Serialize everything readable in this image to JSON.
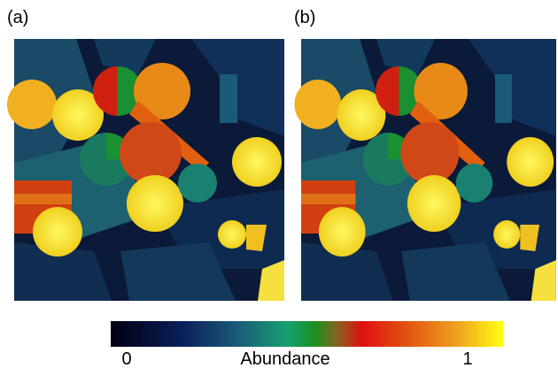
{
  "panels": [
    {
      "label": "(a)"
    },
    {
      "label": "(b)"
    }
  ],
  "colorbar": {
    "label": "Abundance",
    "min": 0,
    "max": 1
  }
}
